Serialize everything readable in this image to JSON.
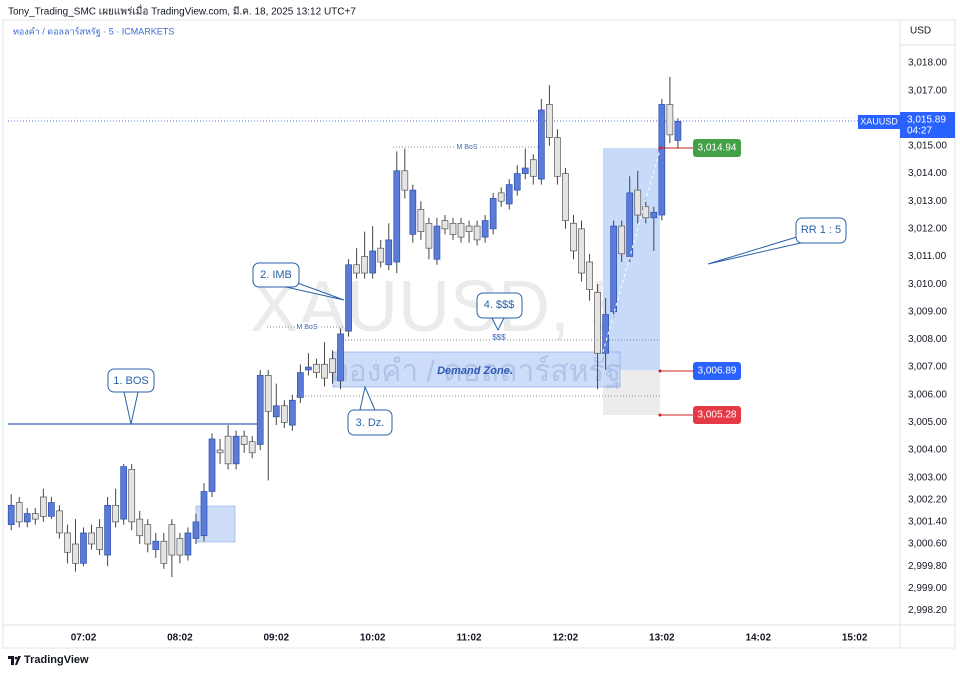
{
  "header": {
    "publisher": "Tony_Trading_SMC เผยแพร่เมื่อ TradingView.com, มี.ค. 18, 2025 13:12 UTC+7",
    "symbol": "ทองคำ / ดอลลาร์สหรัฐ · 5 · ICMARKETS",
    "currency": "USD"
  },
  "footer": {
    "brand": "TradingView"
  },
  "chart_data": {
    "type": "candlestick",
    "watermark": "XAUUSD, 5",
    "watermark_sub": "ทองคำ / ดอลลาร์สหรัฐ",
    "x": [
      "06:17",
      "06:22",
      "06:27",
      "06:32",
      "06:37",
      "06:42",
      "06:47",
      "06:52",
      "06:57",
      "07:02",
      "07:07",
      "07:12",
      "07:17",
      "07:22",
      "07:27",
      "07:32",
      "07:37",
      "07:42",
      "07:47",
      "07:52",
      "07:57",
      "08:02",
      "08:07",
      "08:12",
      "08:17",
      "08:22",
      "08:27",
      "08:32",
      "08:37",
      "08:42",
      "08:47",
      "08:52",
      "08:57",
      "09:02",
      "09:07",
      "09:12",
      "09:17",
      "09:22",
      "09:27",
      "09:32",
      "09:37",
      "09:42",
      "09:47",
      "09:52",
      "09:57",
      "10:02",
      "10:07",
      "10:12",
      "10:17",
      "10:22",
      "10:27",
      "10:32",
      "10:37",
      "10:42",
      "10:47",
      "10:52",
      "10:57",
      "11:02",
      "11:07",
      "11:12",
      "11:17",
      "11:22",
      "11:27",
      "11:32",
      "11:37",
      "11:42",
      "11:47",
      "11:52",
      "11:57",
      "12:02",
      "12:07",
      "12:12",
      "12:17",
      "12:22",
      "12:27",
      "12:32",
      "12:37",
      "12:42",
      "12:47",
      "12:52",
      "12:57",
      "13:02",
      "13:07",
      "13:12"
    ],
    "open": [
      3001.3,
      3002.1,
      3001.4,
      3001.7,
      3002.3,
      3001.6,
      3001.8,
      3001.0,
      3000.6,
      2999.9,
      3001.0,
      3001.2,
      3000.2,
      3002.0,
      3001.5,
      3003.3,
      3001.5,
      3001.3,
      3000.4,
      3000.7,
      3001.3,
      3000.8,
      3000.2,
      3000.8,
      3000.9,
      3002.5,
      3004.0,
      3004.5,
      3003.5,
      3004.5,
      3004.3,
      3004.2,
      3006.7,
      3005.2,
      3005.6,
      3004.9,
      3005.9,
      3006.9,
      3007.1,
      3007.1,
      3007.3,
      3006.5,
      3008.3,
      3010.7,
      3011.0,
      3010.4,
      3011.3,
      3010.7,
      3010.8,
      3014.1,
      3011.8,
      3012.7,
      3012.2,
      3010.9,
      3012.3,
      3012.2,
      3012.2,
      3012.1,
      3012.1,
      3011.7,
      3012.0,
      3013.3,
      3012.9,
      3013.4,
      3014.0,
      3014.5,
      3013.8,
      3016.5,
      3015.3,
      3014.0,
      3012.2,
      3012.0,
      3010.8,
      3009.7,
      3007.5,
      3009.0,
      3012.1,
      3011.0,
      3013.4,
      3012.8,
      3012.4,
      3012.5,
      3016.5,
      3015.2
    ],
    "high": [
      3002.4,
      3002.3,
      3001.9,
      3001.9,
      3002.6,
      3002.3,
      3002.0,
      3001.3,
      3001.5,
      3001.2,
      3001.3,
      3001.5,
      3002.3,
      3002.6,
      3003.5,
      3003.5,
      3001.8,
      3001.5,
      3001.0,
      3001.0,
      3001.5,
      3001.0,
      3001.2,
      3001.7,
      3002.8,
      3004.6,
      3004.4,
      3004.9,
      3004.7,
      3004.7,
      3004.5,
      3006.9,
      3006.9,
      3006.4,
      3005.8,
      3006.0,
      3007.1,
      3007.5,
      3007.3,
      3007.9,
      3007.6,
      3008.4,
      3010.9,
      3011.3,
      3011.9,
      3012.1,
      3011.6,
      3012.2,
      3014.8,
      3014.9,
      3013.6,
      3013.0,
      3012.4,
      3012.4,
      3012.5,
      3012.4,
      3012.4,
      3012.3,
      3012.3,
      3012.5,
      3013.3,
      3013.5,
      3013.8,
      3014.3,
      3014.9,
      3014.7,
      3016.7,
      3017.2,
      3015.6,
      3014.2,
      3012.5,
      3012.3,
      3011.1,
      3010.0,
      3009.5,
      3012.3,
      3012.3,
      3013.9,
      3014.1,
      3013.1,
      3012.8,
      3016.7,
      3017.5,
      3016.0
    ],
    "low": [
      3001.1,
      3001.2,
      3001.2,
      3001.3,
      3001.4,
      3001.5,
      3000.8,
      2999.9,
      2999.6,
      2999.8,
      3000.4,
      3000.2,
      2999.8,
      3001.2,
      3001.3,
      3001.1,
      3000.6,
      3000.3,
      3000.1,
      2999.7,
      2999.4,
      2999.9,
      3000.0,
      3000.6,
      3000.7,
      3002.3,
      3003.5,
      3003.3,
      3003.3,
      3003.9,
      3003.7,
      3004.0,
      3002.9,
      3004.9,
      3004.8,
      3004.7,
      3005.7,
      3006.7,
      3006.6,
      3006.3,
      3006.4,
      3006.2,
      3008.1,
      3010.2,
      3010.2,
      3010.2,
      3010.6,
      3010.5,
      3010.4,
      3013.1,
      3011.5,
      3011.6,
      3010.9,
      3010.7,
      3011.8,
      3011.6,
      3011.5,
      3011.5,
      3011.4,
      3011.5,
      3011.8,
      3012.8,
      3012.7,
      3013.2,
      3013.8,
      3013.6,
      3013.6,
      3015.0,
      3013.6,
      3012.0,
      3010.9,
      3010.1,
      3009.4,
      3006.2,
      3006.9,
      3008.8,
      3010.8,
      3010.8,
      3012.2,
      3012.2,
      3011.2,
      3012.3,
      3015.1,
      3014.9
    ],
    "close": [
      3002.0,
      3001.4,
      3001.7,
      3001.5,
      3001.6,
      3002.1,
      3001.0,
      3000.3,
      2999.9,
      3001.0,
      3000.6,
      3000.4,
      3002.0,
      3001.4,
      3003.4,
      3001.4,
      3000.9,
      3000.6,
      3000.7,
      2999.9,
      3000.2,
      3000.2,
      3001.0,
      3001.4,
      3002.5,
      3004.4,
      3003.9,
      3003.5,
      3004.5,
      3004.2,
      3003.9,
      3006.7,
      3005.4,
      3005.6,
      3005.0,
      3005.8,
      3006.8,
      3007.0,
      3006.8,
      3006.6,
      3006.8,
      3008.2,
      3010.7,
      3010.4,
      3010.4,
      3011.2,
      3010.8,
      3011.6,
      3014.1,
      3013.4,
      3013.4,
      3011.9,
      3011.3,
      3012.1,
      3012.0,
      3011.8,
      3011.7,
      3011.9,
      3011.6,
      3012.3,
      3013.1,
      3013.0,
      3013.6,
      3014.0,
      3014.2,
      3013.9,
      3016.3,
      3015.3,
      3013.9,
      3012.3,
      3011.2,
      3010.4,
      3009.8,
      3007.5,
      3008.9,
      3012.1,
      3011.1,
      3013.3,
      3012.5,
      3012.4,
      3012.6,
      3016.5,
      3015.4,
      3015.89
    ],
    "up_color": "#5a7bd6",
    "down_color": "#e4e4e4",
    "xlim": [
      "06:15",
      "15:29"
    ],
    "xticks": [
      "07:02",
      "08:02",
      "09:02",
      "10:02",
      "11:02",
      "12:02",
      "13:02",
      "14:02",
      "15:02"
    ],
    "ylim": [
      2997.67,
      3018.65
    ],
    "yticks": [
      {
        "value": 3018,
        "label": "3,018.00"
      },
      {
        "value": 3017,
        "label": "3,017.00"
      },
      {
        "value": 3015,
        "label": "3,015.00"
      },
      {
        "value": 3014,
        "label": "3,014.00"
      },
      {
        "value": 3013,
        "label": "3,013.00"
      },
      {
        "value": 3012,
        "label": "3,012.00"
      },
      {
        "value": 3011,
        "label": "3,011.00"
      },
      {
        "value": 3010,
        "label": "3,010.00"
      },
      {
        "value": 3009,
        "label": "3,009.00"
      },
      {
        "value": 3008,
        "label": "3,008.00"
      },
      {
        "value": 3007,
        "label": "3,007.00"
      },
      {
        "value": 3006,
        "label": "3,006.00"
      },
      {
        "value": 3005,
        "label": "3,005.00"
      },
      {
        "value": 3004,
        "label": "3,004.00"
      },
      {
        "value": 3003,
        "label": "3,003.00"
      },
      {
        "value": 3002.2,
        "label": "3,002.20"
      },
      {
        "value": 3001.4,
        "label": "3,001.40"
      },
      {
        "value": 3000.6,
        "label": "3,000.60"
      },
      {
        "value": 2999.8,
        "label": "2,999.80"
      },
      {
        "value": 2999,
        "label": "2,999.00"
      },
      {
        "value": 2998.2,
        "label": "2,998.20"
      }
    ],
    "grid": false,
    "annotations": {
      "bos": "1. BOS",
      "imb": "2. IMB",
      "dz": "3. Dz.",
      "liquidity": "4. $$$",
      "rr": "RR 1 : 5",
      "demand_zone": "Demand Zone.",
      "mbos_top": "M BoS",
      "mbos_low": "M BoS",
      "liquidity_mark": "$$$"
    },
    "price_tags": {
      "target": "3,014.94",
      "entry": "3,006.89",
      "stop": "3,005.28"
    },
    "last_price": {
      "symbol": "XAUUSD",
      "price": "3,015.89",
      "countdown": "04:27"
    }
  }
}
